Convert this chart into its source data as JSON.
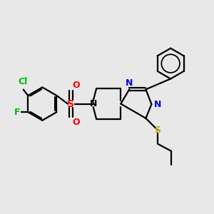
{
  "background_color": "#e8e8e8",
  "bond_color": "#000000",
  "N_color": "#0000ee",
  "S_color": "#bbaa00",
  "O_color": "#ff0000",
  "Cl_color": "#00bb00",
  "F_color": "#00bb00",
  "figsize": [
    3.0,
    3.0
  ],
  "dpi": 100,
  "xlim": [
    0,
    10
  ],
  "ylim": [
    0,
    10
  ]
}
